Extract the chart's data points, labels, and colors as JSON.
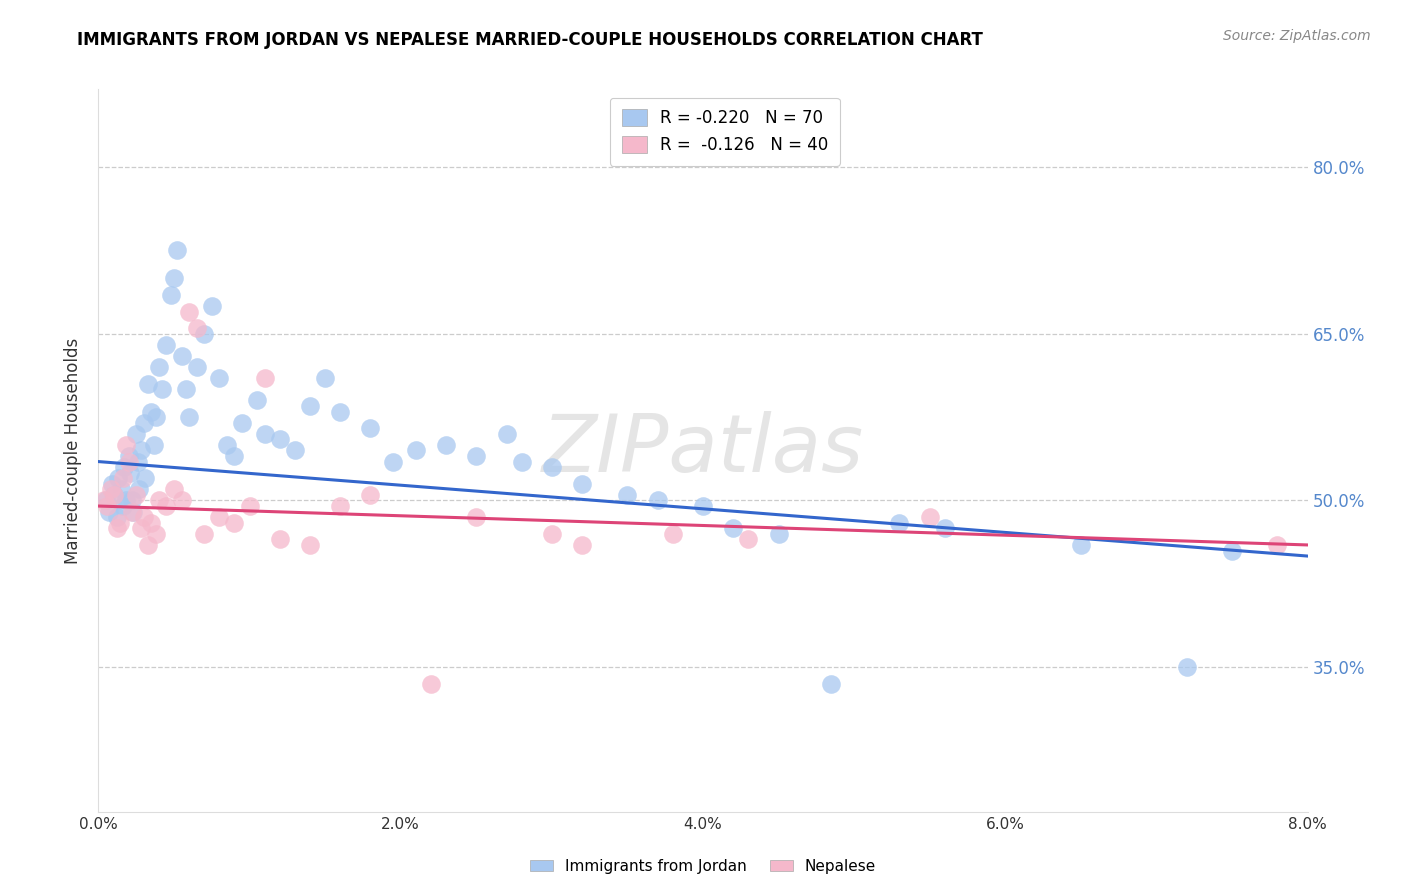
{
  "title": "IMMIGRANTS FROM JORDAN VS NEPALESE MARRIED-COUPLE HOUSEHOLDS CORRELATION CHART",
  "source": "Source: ZipAtlas.com",
  "ylabel": "Married-couple Households",
  "xmin": 0.0,
  "xmax": 8.0,
  "ymin": 22.0,
  "ymax": 87.0,
  "yticks": [
    35.0,
    50.0,
    65.0,
    80.0
  ],
  "xticks": [
    0.0,
    2.0,
    4.0,
    6.0,
    8.0
  ],
  "xtick_labels": [
    "0.0%",
    "2.0%",
    "4.0%",
    "6.0%",
    "8.0%"
  ],
  "ytick_labels_right": [
    "35.0%",
    "50.0%",
    "65.0%",
    "80.0%"
  ],
  "legend_blue_r": "-0.220",
  "legend_blue_n": "70",
  "legend_pink_r": "-0.126",
  "legend_pink_n": "40",
  "blue_color": "#a8c8f0",
  "pink_color": "#f5b8cb",
  "line_blue": "#3366cc",
  "line_pink": "#dd4477",
  "right_axis_color": "#5588cc",
  "watermark": "ZIPatlas",
  "blue_line_x0": 0.0,
  "blue_line_y0": 53.5,
  "blue_line_x1": 8.0,
  "blue_line_y1": 45.0,
  "pink_line_x0": 0.0,
  "pink_line_y0": 49.5,
  "pink_line_x1": 8.0,
  "pink_line_y1": 46.0,
  "jordan_x": [
    0.05,
    0.07,
    0.09,
    0.1,
    0.12,
    0.13,
    0.15,
    0.16,
    0.17,
    0.18,
    0.2,
    0.21,
    0.22,
    0.23,
    0.25,
    0.26,
    0.27,
    0.28,
    0.3,
    0.31,
    0.33,
    0.35,
    0.37,
    0.38,
    0.4,
    0.42,
    0.45,
    0.48,
    0.5,
    0.52,
    0.55,
    0.58,
    0.6,
    0.65,
    0.7,
    0.75,
    0.8,
    0.85,
    0.9,
    0.95,
    1.05,
    1.1,
    1.2,
    1.3,
    1.4,
    1.5,
    1.6,
    1.8,
    1.95,
    2.1,
    2.3,
    2.5,
    2.7,
    2.8,
    3.0,
    3.2,
    3.5,
    3.7,
    4.0,
    4.2,
    4.5,
    4.85,
    5.3,
    5.6,
    6.5,
    7.2,
    7.5
  ],
  "jordan_y": [
    50.0,
    49.0,
    51.5,
    50.5,
    48.5,
    52.0,
    51.0,
    49.5,
    53.0,
    50.0,
    54.0,
    52.5,
    50.0,
    49.0,
    56.0,
    53.5,
    51.0,
    54.5,
    57.0,
    52.0,
    60.5,
    58.0,
    55.0,
    57.5,
    62.0,
    60.0,
    64.0,
    68.5,
    70.0,
    72.5,
    63.0,
    60.0,
    57.5,
    62.0,
    65.0,
    67.5,
    61.0,
    55.0,
    54.0,
    57.0,
    59.0,
    56.0,
    55.5,
    54.5,
    58.5,
    61.0,
    58.0,
    56.5,
    53.5,
    54.5,
    55.0,
    54.0,
    56.0,
    53.5,
    53.0,
    51.5,
    50.5,
    50.0,
    49.5,
    47.5,
    47.0,
    33.5,
    48.0,
    47.5,
    46.0,
    35.0,
    45.5
  ],
  "nepalese_x": [
    0.04,
    0.06,
    0.08,
    0.1,
    0.12,
    0.14,
    0.16,
    0.18,
    0.2,
    0.22,
    0.25,
    0.28,
    0.3,
    0.33,
    0.35,
    0.38,
    0.4,
    0.45,
    0.5,
    0.55,
    0.6,
    0.65,
    0.7,
    0.8,
    0.9,
    1.0,
    1.1,
    1.2,
    1.4,
    1.6,
    1.8,
    2.2,
    2.5,
    3.0,
    3.2,
    3.8,
    4.3,
    5.5,
    7.8
  ],
  "nepalese_y": [
    50.0,
    49.5,
    51.0,
    50.5,
    47.5,
    48.0,
    52.0,
    55.0,
    53.5,
    49.0,
    50.5,
    47.5,
    48.5,
    46.0,
    48.0,
    47.0,
    50.0,
    49.5,
    51.0,
    50.0,
    67.0,
    65.5,
    47.0,
    48.5,
    48.0,
    49.5,
    61.0,
    46.5,
    46.0,
    49.5,
    50.5,
    33.5,
    48.5,
    47.0,
    46.0,
    47.0,
    46.5,
    48.5,
    46.0
  ]
}
